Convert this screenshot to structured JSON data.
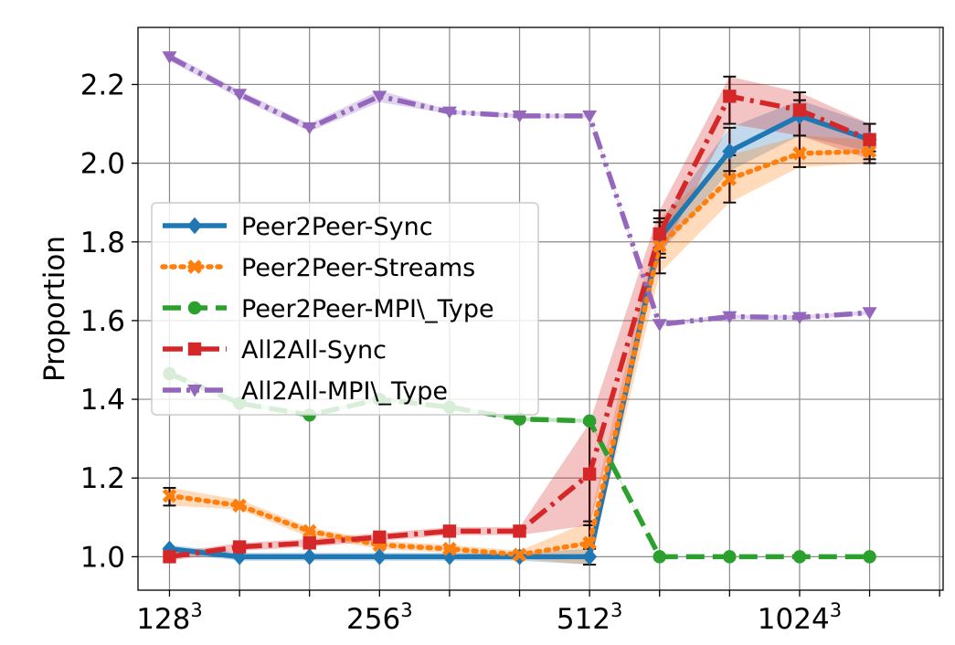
{
  "chart_data": {
    "type": "line",
    "title": "",
    "xlabel": "",
    "ylabel": "Proportion",
    "x_tick_labels": [
      {
        "pos": 0,
        "base": "128",
        "exp": "3"
      },
      {
        "pos": 3,
        "base": "256",
        "exp": "3"
      },
      {
        "pos": 6,
        "base": "512",
        "exp": "3"
      },
      {
        "pos": 9,
        "base": "1024",
        "exp": "3"
      }
    ],
    "xlim": [
      -0.45,
      11.05
    ],
    "ylim": [
      0.915,
      2.345
    ],
    "y_ticks": [
      1.0,
      1.2,
      1.4,
      1.6,
      1.8,
      2.0,
      2.2
    ],
    "y_tick_labels": [
      "1.0",
      "1.2",
      "1.4",
      "1.6",
      "1.8",
      "2.0",
      "2.2"
    ],
    "grid": true,
    "legend_position": "center-left",
    "x": [
      0,
      1,
      2,
      3,
      4,
      5,
      6,
      7,
      8,
      9,
      10
    ],
    "series": [
      {
        "name": "Peer2Peer-Sync",
        "color": "#1f77b4",
        "dash": "solid",
        "marker": "diamond",
        "values": [
          1.02,
          1.0,
          1.0,
          1.0,
          1.0,
          1.0,
          1.0,
          1.81,
          2.03,
          2.12,
          2.06
        ],
        "band": [
          [
            1.01,
            1.03
          ],
          [
            0.99,
            1.01
          ],
          [
            0.99,
            1.01
          ],
          [
            0.99,
            1.01
          ],
          [
            0.99,
            1.01
          ],
          [
            0.99,
            1.01
          ],
          [
            0.98,
            1.02
          ],
          [
            1.77,
            1.85
          ],
          [
            1.98,
            2.09
          ],
          [
            2.07,
            2.16
          ],
          [
            2.03,
            2.1
          ]
        ]
      },
      {
        "name": "Peer2Peer-Streams",
        "color": "#ff7f0e",
        "dash": "dotted",
        "marker": "x",
        "values": [
          1.155,
          1.13,
          1.065,
          1.03,
          1.02,
          1.005,
          1.035,
          1.79,
          1.96,
          2.025,
          2.03
        ],
        "band": [
          [
            1.13,
            1.175
          ],
          [
            1.12,
            1.145
          ],
          [
            1.05,
            1.075
          ],
          [
            1.02,
            1.04
          ],
          [
            1.01,
            1.03
          ],
          [
            0.995,
            1.015
          ],
          [
            0.98,
            1.09
          ],
          [
            1.72,
            1.86
          ],
          [
            1.9,
            2.02
          ],
          [
            1.99,
            2.07
          ],
          [
            2.0,
            2.06
          ]
        ]
      },
      {
        "name": "Peer2Peer-MPI\\_Type",
        "color": "#2ca02c",
        "dash": "dashed",
        "marker": "circle",
        "values": [
          1.465,
          1.39,
          1.36,
          1.4,
          1.38,
          1.35,
          1.345,
          1.0,
          1.0,
          1.0,
          1.0
        ],
        "band": [
          [
            1.455,
            1.475
          ],
          [
            1.385,
            1.395
          ],
          [
            1.355,
            1.365
          ],
          [
            1.395,
            1.405
          ],
          [
            1.375,
            1.385
          ],
          [
            1.345,
            1.355
          ],
          [
            1.34,
            1.35
          ],
          [
            1.0,
            1.0
          ],
          [
            1.0,
            1.0
          ],
          [
            1.0,
            1.0
          ],
          [
            1.0,
            1.0
          ]
        ]
      },
      {
        "name": "All2All-Sync",
        "color": "#d62728",
        "dash": "dashdot",
        "marker": "square",
        "values": [
          1.0,
          1.025,
          1.035,
          1.05,
          1.065,
          1.065,
          1.21,
          1.82,
          2.17,
          2.135,
          2.06
        ],
        "band": [
          [
            0.99,
            1.01
          ],
          [
            1.015,
            1.035
          ],
          [
            1.025,
            1.045
          ],
          [
            1.04,
            1.06
          ],
          [
            1.055,
            1.075
          ],
          [
            1.055,
            1.075
          ],
          [
            1.08,
            1.34
          ],
          [
            1.76,
            1.88
          ],
          [
            2.1,
            2.22
          ],
          [
            2.07,
            2.18
          ],
          [
            2.01,
            2.1
          ]
        ]
      },
      {
        "name": "All2All-MPI\\_Type",
        "color": "#9467bd",
        "dash": "dashdotdot",
        "marker": "triangle-down",
        "values": [
          2.27,
          2.175,
          2.09,
          2.17,
          2.13,
          2.12,
          2.12,
          1.59,
          1.61,
          1.608,
          1.62
        ],
        "band": [
          [
            2.26,
            2.28
          ],
          [
            2.165,
            2.185
          ],
          [
            2.08,
            2.1
          ],
          [
            2.155,
            2.185
          ],
          [
            2.125,
            2.135
          ],
          [
            2.115,
            2.125
          ],
          [
            2.115,
            2.125
          ],
          [
            1.585,
            1.595
          ],
          [
            1.605,
            1.615
          ],
          [
            1.603,
            1.613
          ],
          [
            1.615,
            1.625
          ]
        ]
      }
    ]
  }
}
